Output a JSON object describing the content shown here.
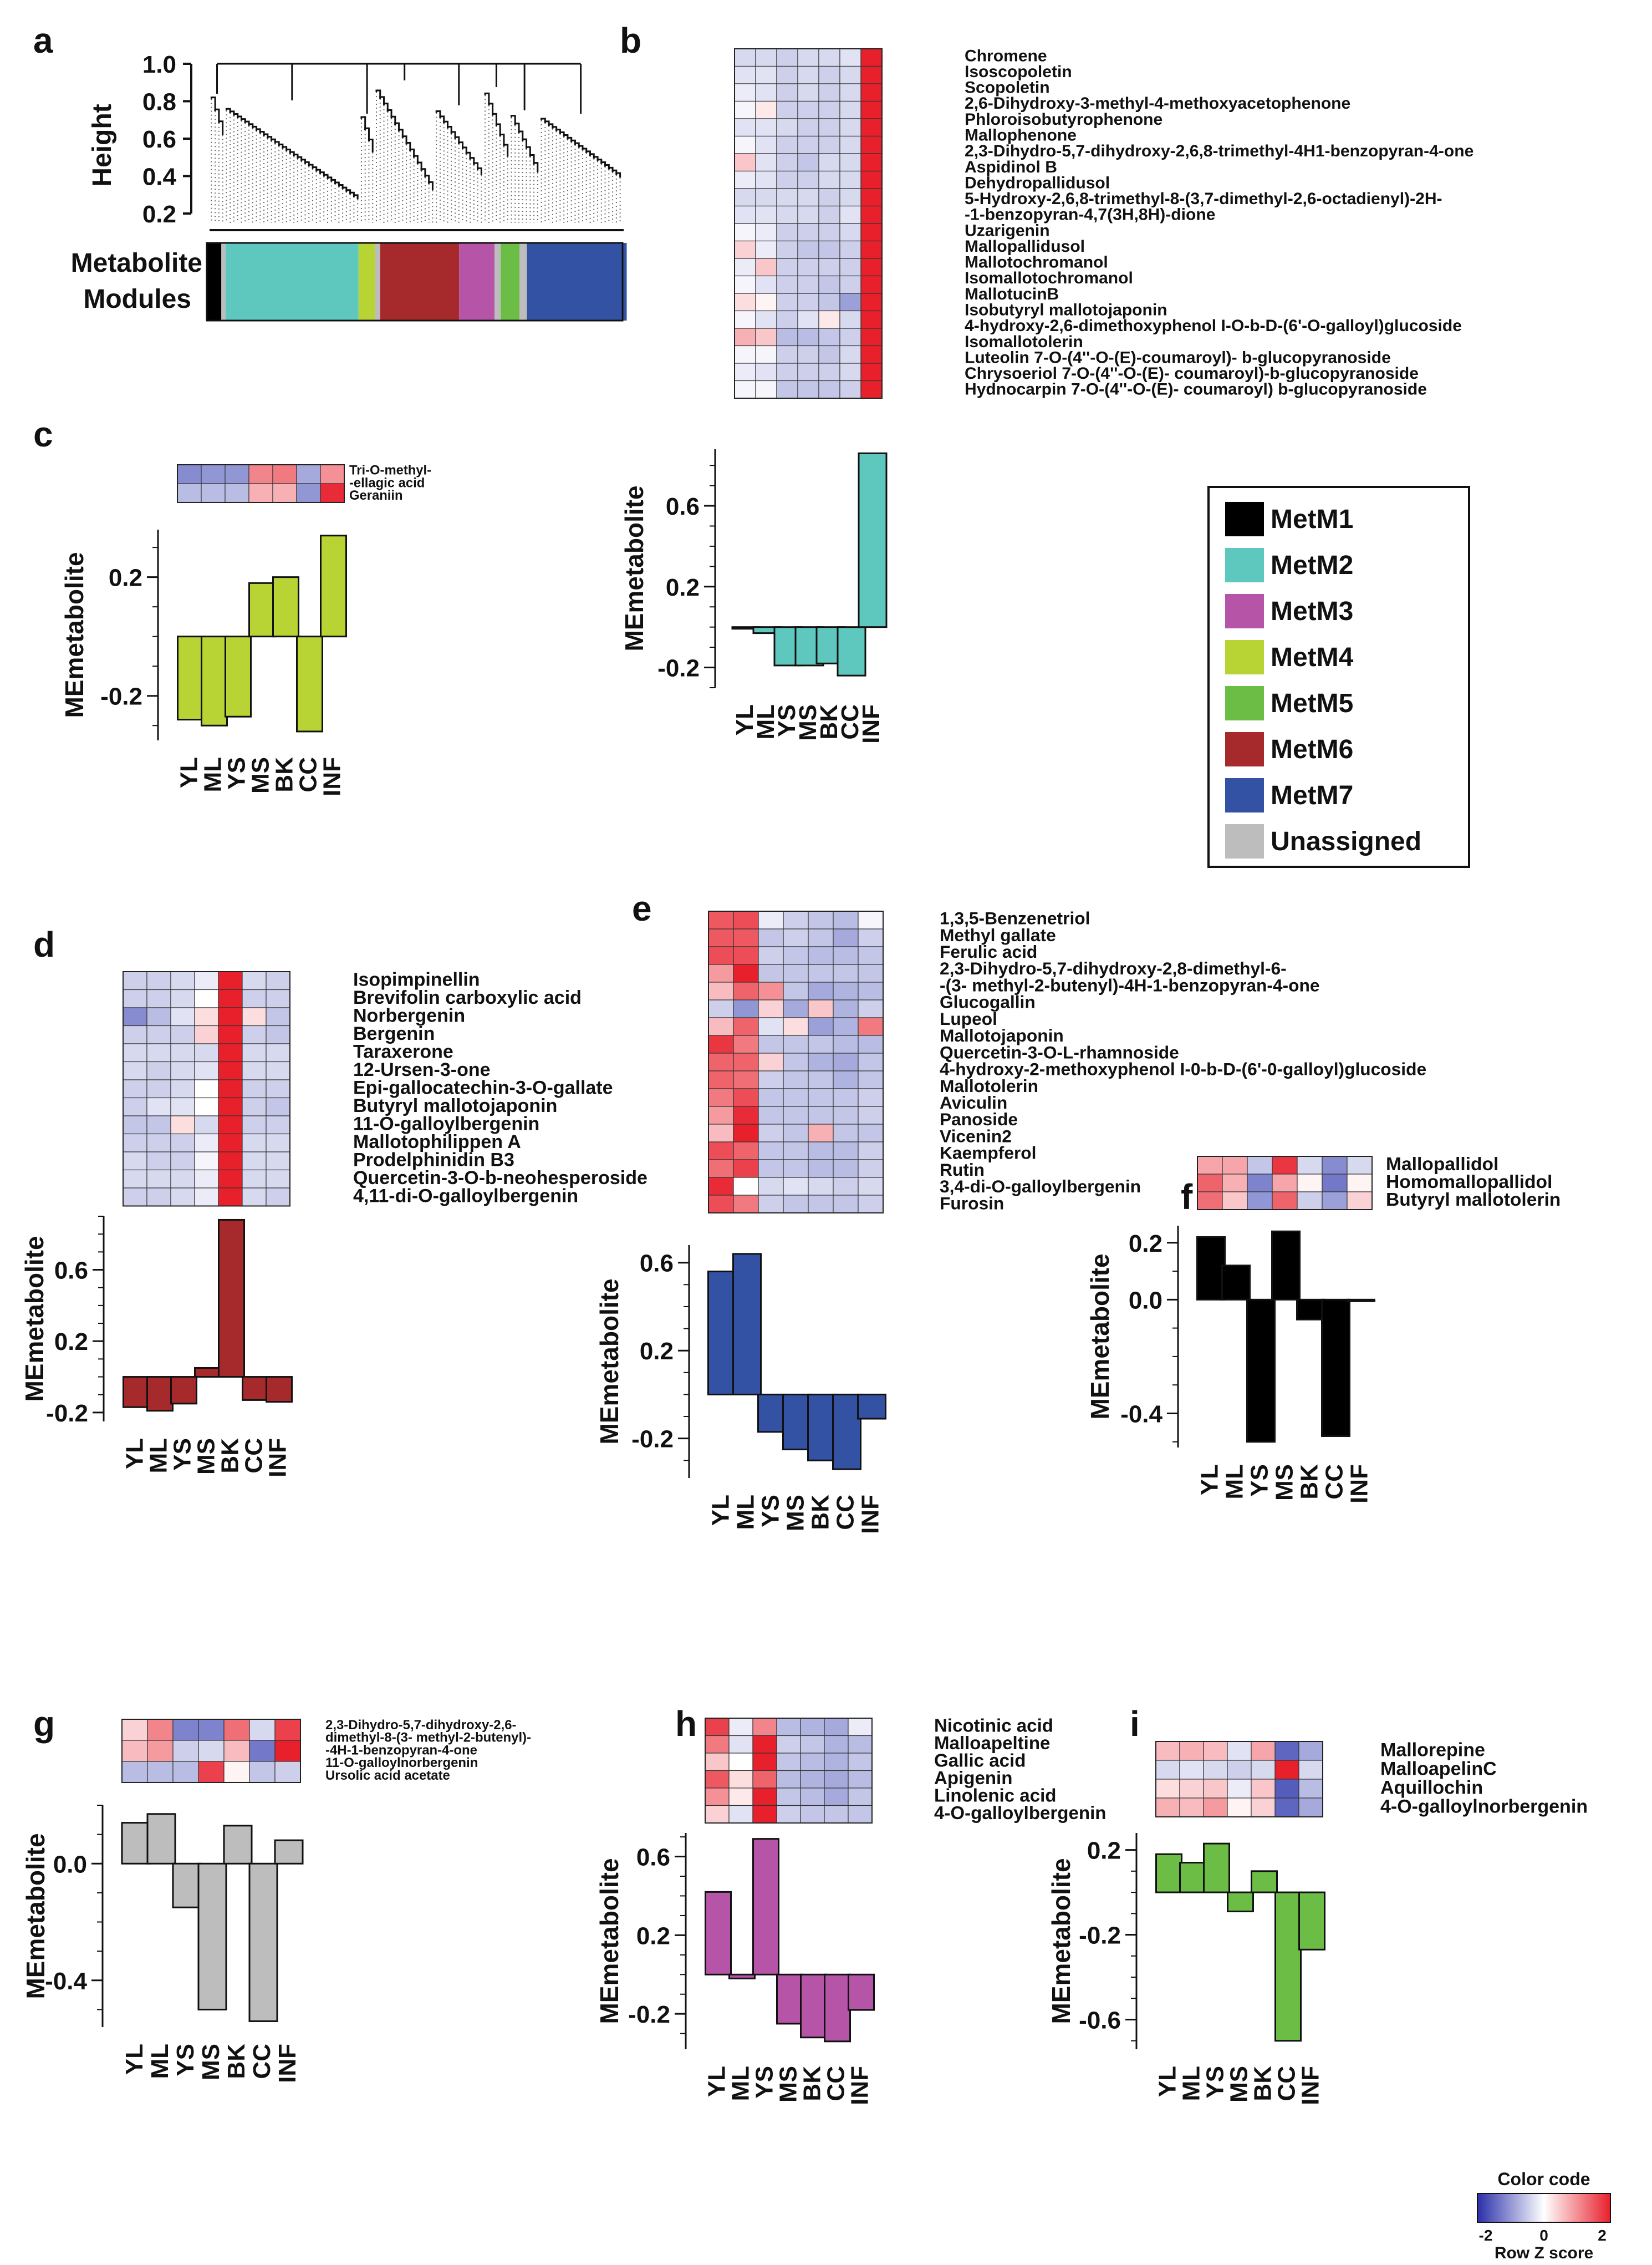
{
  "colors": {
    "MetM1": "#000000",
    "MetM2": "#5ec7be",
    "MetM3": "#b655a8",
    "MetM4": "#b7d334",
    "MetM5": "#6cbd45",
    "MetM6": "#a62a2b",
    "MetM7": "#3452a3",
    "Unassigned": "#bdbdbd",
    "heat_low": "#3740b0",
    "heat_mid": "#ffffff",
    "heat_high": "#e8202c"
  },
  "samples": [
    "YL",
    "ML",
    "YS",
    "MS",
    "BK",
    "CC",
    "INF"
  ],
  "ylabel": "MEmetabolite",
  "panel_letters": [
    "a",
    "b",
    "c",
    "d",
    "e",
    "f",
    "g",
    "h",
    "i"
  ],
  "dendrogram": {
    "ylabel": "Height",
    "ticks": [
      "1.0",
      "0.8",
      "0.6",
      "0.4",
      "0.2"
    ],
    "module_label_1": "Metabolite",
    "module_label_2": "Modules",
    "module_bar": [
      {
        "module": "MetM1",
        "fraction": 0.035
      },
      {
        "module": "Unassigned",
        "fraction": 0.01
      },
      {
        "module": "MetM2",
        "fraction": 0.32
      },
      {
        "module": "MetM4",
        "fraction": 0.04
      },
      {
        "module": "Unassigned",
        "fraction": 0.012
      },
      {
        "module": "MetM6",
        "fraction": 0.19
      },
      {
        "module": "MetM3",
        "fraction": 0.085
      },
      {
        "module": "Unassigned",
        "fraction": 0.015
      },
      {
        "module": "MetM5",
        "fraction": 0.045
      },
      {
        "module": "Unassigned",
        "fraction": 0.018
      },
      {
        "module": "MetM7",
        "fraction": 0.24
      }
    ]
  },
  "legend": {
    "items": [
      "MetM1",
      "MetM2",
      "MetM3",
      "MetM4",
      "MetM5",
      "MetM6",
      "MetM7",
      "Unassigned"
    ]
  },
  "color_key": {
    "title": "Color code",
    "ticks": [
      "-2",
      "0",
      "2"
    ],
    "label": "Row Z score"
  },
  "chart_data": [
    {
      "panel": "b",
      "type": "heatmap+bar",
      "module": "MetM2",
      "metabolites": [
        "Chromene",
        "Isoscopoletin",
        "Scopoletin",
        "2,6-Dihydroxy-3-methyl-4-methoxyacetophenone",
        "Phloroisobutyrophenone",
        "Mallophenone",
        "2,3-Dihydro-5,7-dihydroxy-2,6,8-trimethyl-4H1-benzopyran-4-one",
        "Aspidinol B",
        "Dehydropallidusol",
        "5-Hydroxy-2,6,8-trimethyl-8-(3,7-dimethyl-2,6-octadienyl)-2H-",
        "-1-benzopyran-4,7(3H,8H)-dione",
        "Uzarigenin",
        "Mallopallidusol",
        "Mallotochromanol",
        "Isomallotochromanol",
        "MallotucinB",
        "Isobutyryl mallotojaponin",
        "4-hydroxy-2,6-dimethoxyphenol I-O-b-D-(6'-O-galloyl)glucoside",
        "Isomallotolerin",
        "Luteolin 7-O-(4''-O-(E)-coumaroyl)- b-glucopyranoside",
        "Chrysoeriol 7-O-(4''-O-(E)- coumaroyl)-b-glucopyranoside",
        "Hydnocarpin 7-O-(4''-O-(E)- coumaroyl) b-glucopyranoside"
      ],
      "heatmap": [
        [
          -0.4,
          -0.4,
          -0.5,
          -0.4,
          -0.4,
          -0.3,
          2.4
        ],
        [
          -0.3,
          -0.3,
          -0.5,
          -0.4,
          -0.5,
          -0.4,
          2.4
        ],
        [
          -0.2,
          -0.3,
          -0.5,
          -0.4,
          -0.5,
          -0.4,
          2.4
        ],
        [
          -0.1,
          0.2,
          -0.5,
          -0.5,
          -0.5,
          -0.4,
          2.4
        ],
        [
          -0.3,
          -0.3,
          -0.4,
          -0.5,
          -0.5,
          -0.4,
          2.4
        ],
        [
          -0.1,
          -0.3,
          -0.5,
          -0.5,
          -0.5,
          -0.4,
          2.4
        ],
        [
          0.5,
          -0.3,
          -0.5,
          -0.6,
          -0.4,
          -0.4,
          2.4
        ],
        [
          -0.2,
          -0.3,
          -0.5,
          -0.5,
          -0.4,
          -0.4,
          2.4
        ],
        [
          -0.4,
          -0.4,
          -0.4,
          -0.4,
          -0.5,
          -0.4,
          2.4
        ],
        [
          -0.3,
          -0.3,
          -0.4,
          -0.4,
          -0.5,
          -0.3,
          2.4
        ],
        [
          -0.1,
          -0.2,
          -0.5,
          -0.5,
          -0.5,
          -0.4,
          2.4
        ],
        [
          0.4,
          -0.2,
          -0.5,
          -0.6,
          -0.6,
          -0.5,
          2.4
        ],
        [
          -0.2,
          0.5,
          -0.5,
          -0.5,
          -0.5,
          -0.5,
          2.4
        ],
        [
          -0.1,
          -0.3,
          -0.5,
          -0.5,
          -0.6,
          -0.5,
          2.4
        ],
        [
          0.3,
          0.1,
          -0.5,
          -0.5,
          -0.6,
          -1.0,
          2.4
        ],
        [
          -0.1,
          -0.3,
          -0.5,
          -0.3,
          0.2,
          -0.4,
          2.4
        ],
        [
          0.7,
          0.5,
          -0.7,
          -0.7,
          -0.6,
          -0.5,
          2.4
        ],
        [
          -0.1,
          -0.1,
          -0.5,
          -0.5,
          -0.6,
          -0.4,
          2.4
        ],
        [
          -0.2,
          -0.3,
          -0.5,
          -0.5,
          -0.5,
          -0.4,
          2.4
        ],
        [
          -0.1,
          -0.1,
          -0.6,
          -0.6,
          -0.6,
          -0.5,
          2.4
        ]
      ],
      "values": [
        0.0,
        -0.03,
        -0.19,
        -0.19,
        -0.18,
        -0.24,
        0.86
      ],
      "ylim": [
        -0.3,
        0.88
      ],
      "yticks": [
        -0.2,
        0.2,
        0.6
      ]
    },
    {
      "panel": "c",
      "type": "heatmap+bar",
      "module": "MetM4",
      "metabolites": [
        "Tri-O-methyl-",
        "-ellagic acid",
        "Geraniin"
      ],
      "heatmap": [
        [
          -1.2,
          -1.1,
          -1.1,
          1.1,
          1.2,
          -0.9,
          1.0
        ],
        [
          -0.7,
          -0.7,
          -0.7,
          0.7,
          0.7,
          -1.1,
          1.9
        ]
      ],
      "values": [
        -0.28,
        -0.3,
        -0.27,
        0.18,
        0.2,
        -0.32,
        0.34
      ],
      "ylim": [
        -0.35,
        0.36
      ],
      "yticks": [
        -0.2,
        0.2
      ]
    },
    {
      "panel": "d",
      "type": "heatmap+bar",
      "module": "MetM6",
      "metabolites": [
        "Isopimpinellin",
        "Brevifolin carboxylic acid",
        "Norbergenin",
        "Bergenin",
        "Taraxerone",
        "12-Ursen-3-one",
        "Epi-gallocatechin-3-O-gallate",
        "Butyryl mallotojaponin",
        "11-O-galloylbergenin",
        "Mallotophilippen A",
        "Prodelphinidin B3",
        "Quercetin-3-O-b-neohesperoside",
        "4,11-di-O-galloylbergenin"
      ],
      "heatmap": [
        [
          -0.5,
          -0.5,
          -0.4,
          -0.2,
          2.4,
          -0.4,
          -0.5
        ],
        [
          -0.5,
          -0.5,
          -0.4,
          0.0,
          2.4,
          -0.5,
          -0.5
        ],
        [
          -1.2,
          -0.7,
          -0.3,
          0.3,
          2.2,
          0.3,
          -0.6
        ],
        [
          -0.5,
          -0.5,
          -0.5,
          0.4,
          2.2,
          -0.5,
          -0.6
        ],
        [
          -0.4,
          -0.4,
          -0.4,
          -0.4,
          2.4,
          -0.4,
          -0.4
        ],
        [
          -0.4,
          -0.5,
          -0.4,
          -0.3,
          2.4,
          -0.4,
          -0.4
        ],
        [
          -0.5,
          -0.5,
          -0.4,
          0.0,
          2.4,
          -0.5,
          -0.5
        ],
        [
          -0.5,
          -0.3,
          -0.3,
          0.0,
          2.4,
          -0.5,
          -0.6
        ],
        [
          -0.6,
          -0.6,
          0.3,
          -0.4,
          2.3,
          -0.5,
          -0.5
        ],
        [
          -0.5,
          -0.5,
          -0.5,
          -0.2,
          2.4,
          -0.4,
          -0.4
        ],
        [
          -0.4,
          -0.5,
          -0.5,
          -0.1,
          2.4,
          -0.4,
          -0.4
        ],
        [
          -0.4,
          -0.4,
          -0.4,
          -0.2,
          2.4,
          -0.4,
          -0.4
        ],
        [
          -0.5,
          -0.5,
          -0.4,
          -0.2,
          2.4,
          -0.4,
          -0.5
        ]
      ],
      "values": [
        -0.17,
        -0.19,
        -0.15,
        0.05,
        0.88,
        -0.13,
        -0.14
      ],
      "ylim": [
        -0.25,
        0.9
      ],
      "yticks": [
        -0.2,
        0.2,
        0.6
      ]
    },
    {
      "panel": "e",
      "type": "heatmap+bar",
      "module": "MetM7",
      "metabolites": [
        "1,3,5-Benzenetriol",
        "Methyl gallate",
        "Ferulic acid",
        "2,3-Dihydro-5,7-dihydroxy-2,8-dimethyl-6-",
        "-(3- methyl-2-butenyl)-4H-1-benzopyran-4-one",
        "Glucogallin",
        "Lupeol",
        "Mallotojaponin",
        "Quercetin-3-O-L-rhamnoside",
        "4-hydroxy-2-methoxyphenol I-0-b-D-(6'-0-galloyl)glucoside",
        "Mallotolerin",
        "Aviculin",
        "Panoside",
        "Vicenin2",
        "Kaempferol",
        "Rutin",
        "3,4-di-O-galloylbergenin",
        "Furosin"
      ],
      "heatmap": [
        [
          1.5,
          1.6,
          -0.2,
          -0.5,
          -0.6,
          -0.7,
          -0.1
        ],
        [
          1.5,
          1.5,
          -0.6,
          -0.5,
          -0.6,
          -0.9,
          -0.5
        ],
        [
          1.6,
          1.6,
          -0.5,
          -0.6,
          -0.7,
          -0.7,
          -0.6
        ],
        [
          0.9,
          2.2,
          -0.6,
          -0.6,
          -0.6,
          -0.6,
          -0.6
        ],
        [
          0.6,
          1.4,
          1.0,
          -0.6,
          -0.9,
          -0.8,
          -0.7
        ],
        [
          -0.5,
          -1.1,
          0.4,
          -0.9,
          0.5,
          -0.8,
          -0.5
        ],
        [
          0.6,
          1.4,
          -0.3,
          0.3,
          -1.0,
          -0.8,
          1.2
        ],
        [
          1.8,
          1.2,
          -0.6,
          -0.6,
          -0.6,
          -0.7,
          -0.7
        ],
        [
          1.4,
          1.4,
          0.4,
          -0.6,
          -0.8,
          -0.9,
          -0.6
        ],
        [
          1.4,
          1.3,
          -0.5,
          -0.6,
          -0.6,
          -0.8,
          -0.6
        ],
        [
          1.2,
          1.6,
          -0.6,
          -0.6,
          -0.6,
          -0.6,
          -0.5
        ],
        [
          0.9,
          1.9,
          -0.6,
          -0.6,
          -0.6,
          -0.6,
          -0.5
        ],
        [
          0.6,
          2.0,
          -0.5,
          -0.6,
          0.7,
          -0.6,
          -0.6
        ],
        [
          1.6,
          1.4,
          -0.6,
          -0.6,
          -0.7,
          -0.7,
          -0.5
        ],
        [
          1.3,
          1.7,
          -0.6,
          -0.6,
          -0.7,
          -0.7,
          -0.5
        ],
        [
          1.9,
          0.0,
          -0.4,
          -0.3,
          -0.4,
          -0.5,
          -0.4
        ],
        [
          1.6,
          1.2,
          -0.5,
          -0.6,
          -0.6,
          -0.6,
          -0.5
        ]
      ],
      "values": [
        0.56,
        0.64,
        -0.17,
        -0.25,
        -0.3,
        -0.34,
        -0.11
      ],
      "ylim": [
        -0.38,
        0.68
      ],
      "yticks": [
        -0.2,
        0.2,
        0.6
      ]
    },
    {
      "panel": "f",
      "type": "heatmap+bar",
      "module": "MetM1",
      "metabolites": [
        "Mallopallidol",
        "Homomallopallidol",
        "Butyryl mallotolerin"
      ],
      "heatmap": [
        [
          0.8,
          0.8,
          -0.6,
          1.8,
          -0.4,
          -1.2,
          -0.4
        ],
        [
          1.4,
          0.7,
          -1.3,
          0.8,
          0.1,
          -1.4,
          0.1
        ],
        [
          1.3,
          0.5,
          -1.1,
          1.4,
          -0.5,
          -1.0,
          0.4
        ]
      ],
      "values": [
        0.22,
        0.12,
        -0.5,
        0.24,
        -0.07,
        -0.48,
        0.0
      ],
      "ylim": [
        -0.52,
        0.26
      ],
      "yticks": [
        -0.4,
        0.0,
        0.2
      ]
    },
    {
      "panel": "g",
      "type": "heatmap+bar",
      "module": "Unassigned",
      "metabolites": [
        "2,3-Dihydro-5,7-dihydroxy-2,6-",
        "dimethyl-8-(3- methyl-2-butenyl)-",
        "-4H-1-benzopyran-4-one",
        "11-O-galloylnorbergenin",
        "Ursolic acid acetate"
      ],
      "heatmap": [
        [
          0.4,
          1.1,
          -1.3,
          -1.3,
          1.3,
          -0.4,
          1.7
        ],
        [
          0.6,
          0.9,
          -0.5,
          -0.4,
          0.6,
          -1.4,
          2.0
        ],
        [
          -0.7,
          -0.7,
          -0.7,
          1.7,
          0.1,
          -0.6,
          -0.5
        ]
      ],
      "values": [
        0.14,
        0.17,
        -0.15,
        -0.5,
        0.13,
        -0.54,
        0.08
      ],
      "ylim": [
        -0.56,
        0.2
      ],
      "yticks": [
        -0.4,
        0.0
      ]
    },
    {
      "panel": "h",
      "type": "heatmap+bar",
      "module": "MetM3",
      "metabolites": [
        "Nicotinic acid",
        "Malloapeltine",
        "Gallic acid",
        "Apigenin",
        "Linolenic acid",
        "4-O-galloylbergenin"
      ],
      "heatmap": [
        [
          1.7,
          -0.2,
          1.1,
          -0.7,
          -0.8,
          -0.9,
          -0.2
        ],
        [
          1.2,
          -0.3,
          2.0,
          -0.5,
          -0.6,
          -0.8,
          -0.7
        ],
        [
          0.5,
          0.0,
          2.2,
          -0.6,
          -0.7,
          -0.8,
          -0.6
        ],
        [
          1.5,
          0.3,
          1.4,
          -0.7,
          -0.8,
          -0.9,
          -0.7
        ],
        [
          1.0,
          0.2,
          2.0,
          -0.6,
          -0.7,
          -0.9,
          -0.6
        ],
        [
          0.4,
          -0.3,
          2.3,
          -0.5,
          -0.6,
          -0.6,
          -0.6
        ]
      ],
      "values": [
        0.42,
        -0.02,
        0.69,
        -0.25,
        -0.32,
        -0.34,
        -0.18
      ],
      "ylim": [
        -0.38,
        0.72
      ],
      "yticks": [
        -0.2,
        0.2,
        0.6
      ]
    },
    {
      "panel": "i",
      "type": "heatmap+bar",
      "module": "MetM5",
      "metabolites": [
        "Mallorepine",
        "MalloapelinC",
        "Aquillochin",
        "4-O-galloylnorbergenin"
      ],
      "heatmap": [
        [
          0.6,
          0.7,
          0.6,
          -0.3,
          0.8,
          -1.6,
          -0.9
        ],
        [
          -0.4,
          -0.3,
          -0.4,
          -0.5,
          -0.4,
          2.3,
          -0.4
        ],
        [
          0.3,
          0.4,
          0.5,
          -0.2,
          0.5,
          -1.7,
          -0.7
        ],
        [
          0.7,
          0.6,
          0.9,
          0.1,
          0.4,
          -1.6,
          -0.9
        ]
      ],
      "values": [
        0.18,
        0.14,
        0.23,
        -0.09,
        0.1,
        -0.7,
        -0.27
      ],
      "ylim": [
        -0.74,
        0.28
      ],
      "yticks": [
        -0.6,
        -0.2,
        0.2
      ]
    }
  ]
}
